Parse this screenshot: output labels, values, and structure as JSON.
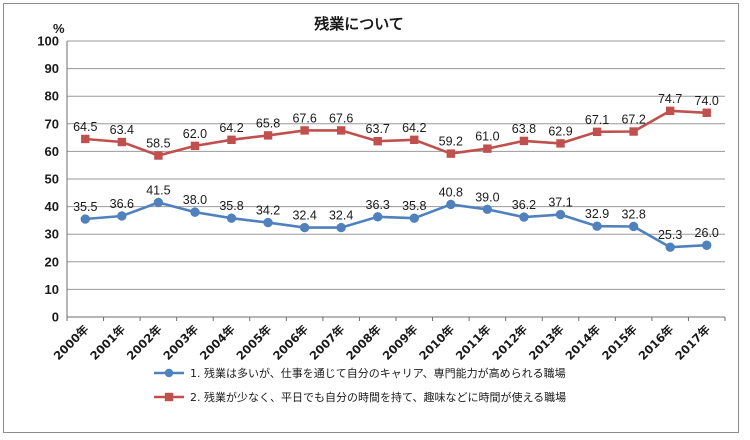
{
  "chart_data": {
    "type": "line",
    "title": "残業について",
    "ylabel": "%",
    "ylim": [
      0,
      100
    ],
    "yticks": [
      0,
      10,
      20,
      30,
      40,
      50,
      60,
      70,
      80,
      90,
      100
    ],
    "grid": true,
    "legend_position": "bottom",
    "categories": [
      "2000年",
      "2001年",
      "2002年",
      "2003年",
      "2004年",
      "2005年",
      "2006年",
      "2007年",
      "2008年",
      "2009年",
      "2010年",
      "2011年",
      "2012年",
      "2013年",
      "2014年",
      "2015年",
      "2016年",
      "2017年"
    ],
    "series": [
      {
        "name": "1.  残業は多いが、仕事を通じて自分のキャリア、専門能力が高められる職場",
        "color": "#4f81bd",
        "marker": "circle",
        "values": [
          35.5,
          36.6,
          41.5,
          38.0,
          35.8,
          34.2,
          32.4,
          32.4,
          36.3,
          35.8,
          40.8,
          39.0,
          36.2,
          37.1,
          32.9,
          32.8,
          25.3,
          26.0
        ]
      },
      {
        "name": "2.  残業が少なく、平日でも自分の時間を持て、趣味などに時間が使える職場",
        "color": "#c0504d",
        "marker": "square",
        "values": [
          64.5,
          63.4,
          58.5,
          62.0,
          64.2,
          65.8,
          67.6,
          67.6,
          63.7,
          64.2,
          59.2,
          61.0,
          63.8,
          62.9,
          67.1,
          67.2,
          74.7,
          74.0
        ]
      }
    ]
  }
}
